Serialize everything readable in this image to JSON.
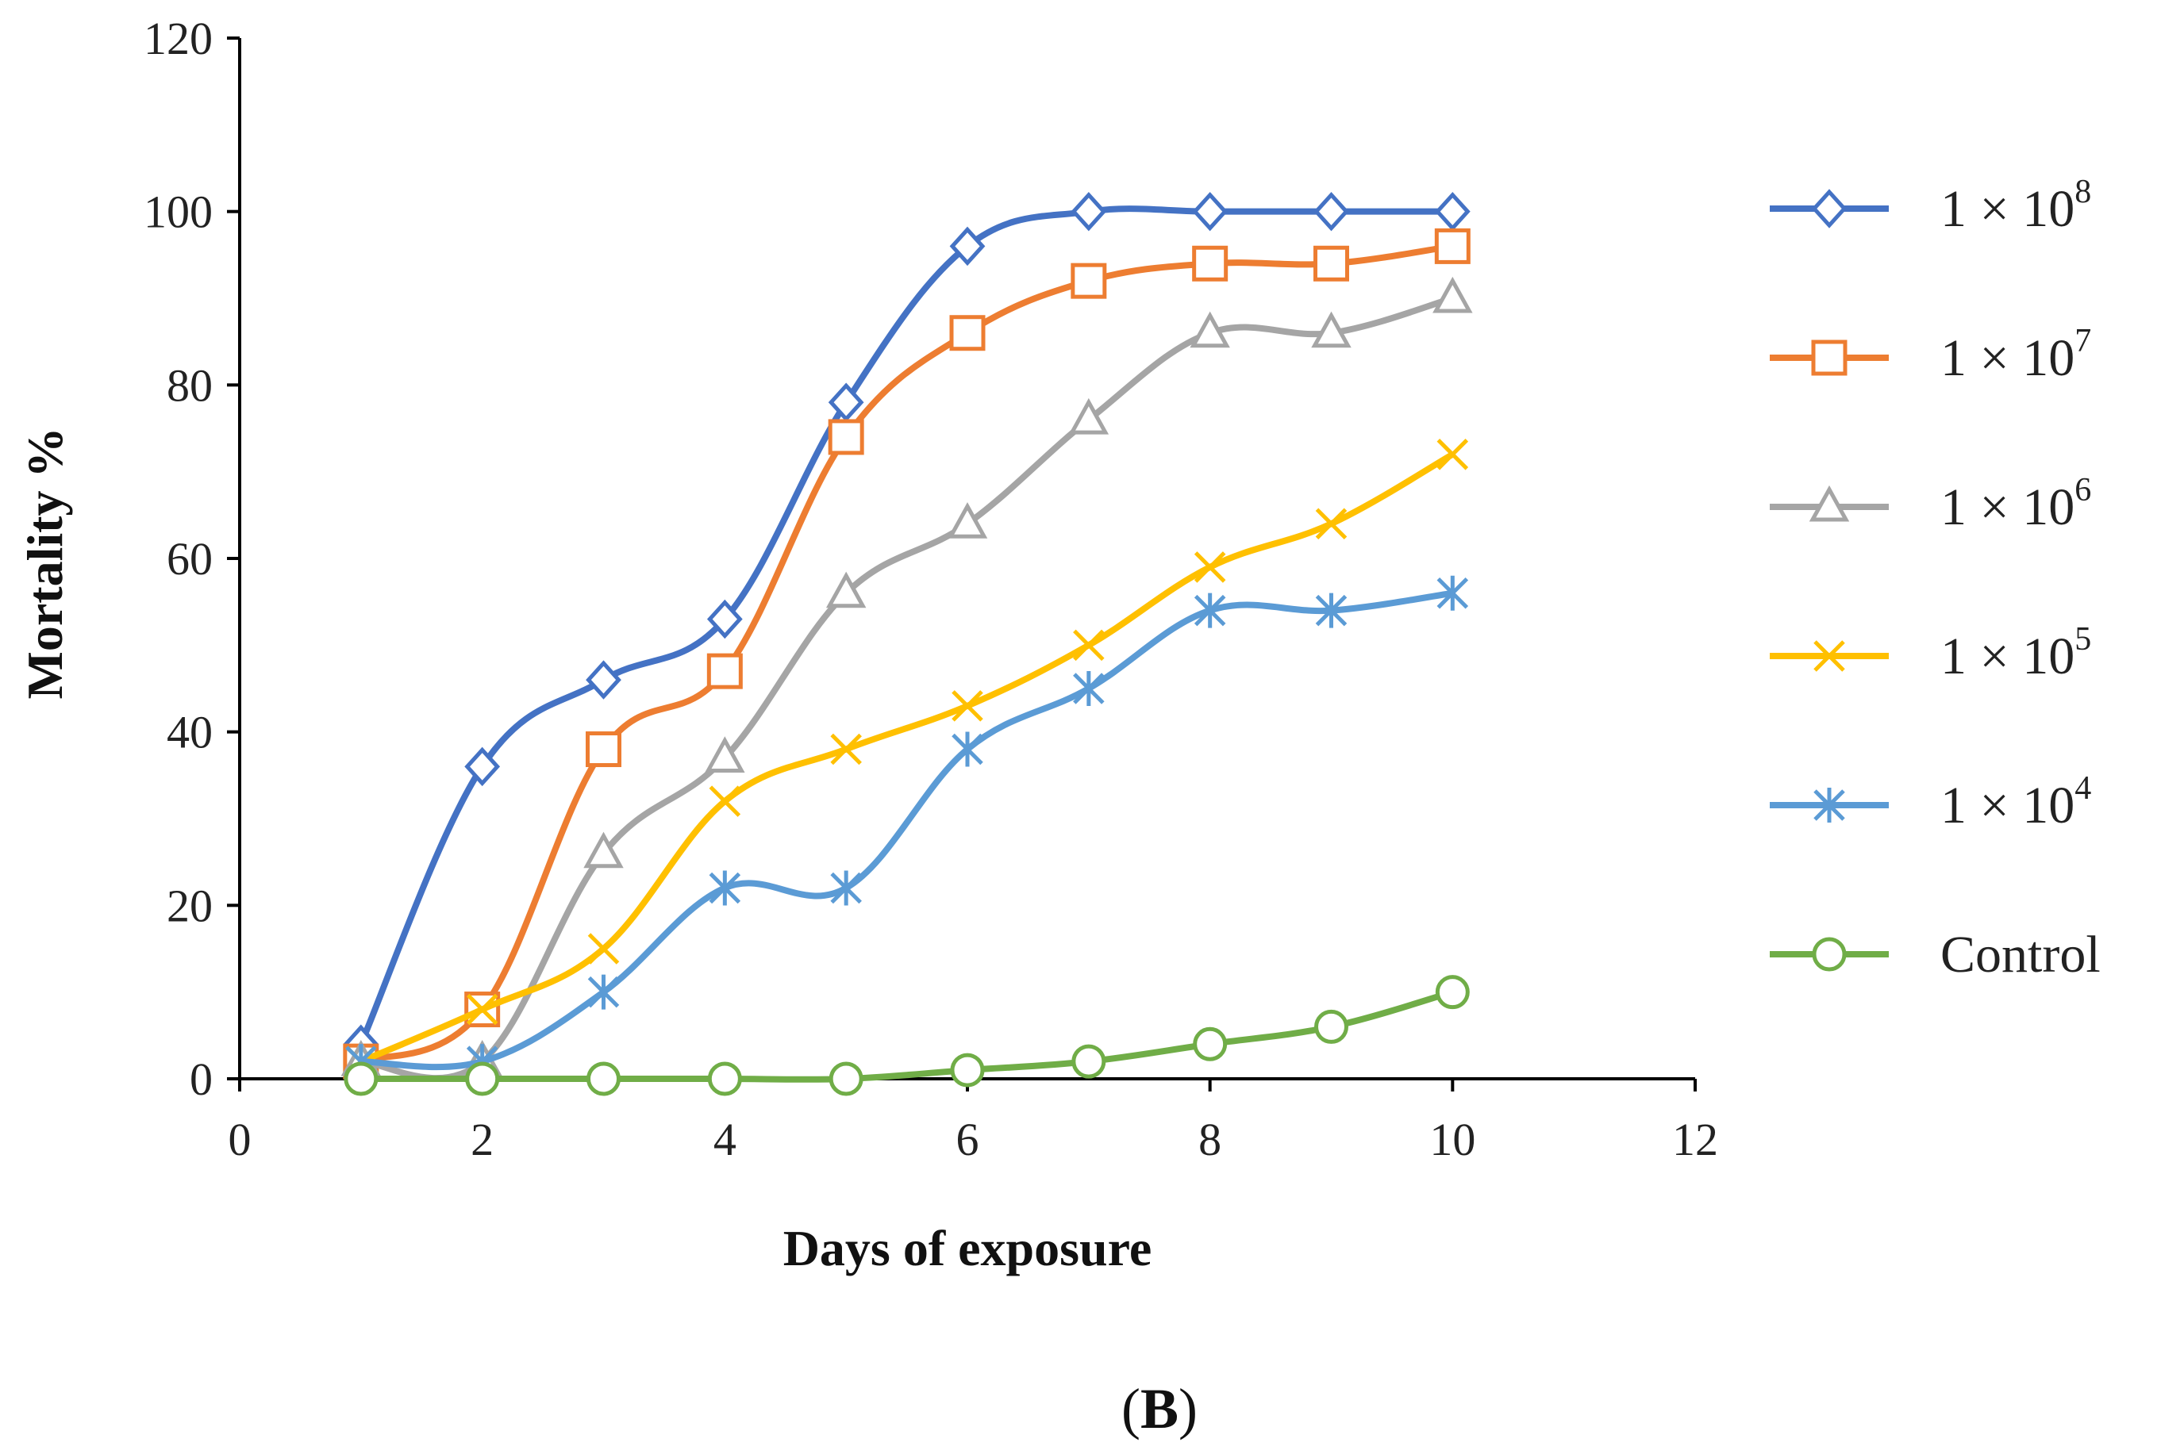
{
  "chart_data": {
    "type": "line",
    "title": "",
    "xlabel": "Days of exposure",
    "ylabel": "Mortality %",
    "xlim": [
      0,
      12
    ],
    "ylim": [
      0,
      120
    ],
    "xticks": [
      0,
      2,
      4,
      6,
      8,
      10,
      12
    ],
    "yticks": [
      0,
      20,
      40,
      60,
      80,
      100,
      120
    ],
    "grid": false,
    "legend_position": "right",
    "x": [
      1,
      2,
      3,
      4,
      5,
      6,
      7,
      8,
      9,
      10
    ],
    "series": [
      {
        "name": "1 × 10^8",
        "base": "1 × 10",
        "exp": "8",
        "marker": "diamond",
        "color": "#4472C4",
        "values": [
          4,
          36,
          46,
          53,
          78,
          96,
          100,
          100,
          100,
          100
        ]
      },
      {
        "name": "1 × 10^7",
        "base": "1 × 10",
        "exp": "7",
        "marker": "square",
        "color": "#ED7D31",
        "values": [
          2,
          8,
          38,
          47,
          74,
          86,
          92,
          94,
          94,
          96
        ]
      },
      {
        "name": "1 × 10^6",
        "base": "1 × 10",
        "exp": "6",
        "marker": "triangle",
        "color": "#A5A5A5",
        "values": [
          2,
          2,
          26,
          37,
          56,
          64,
          76,
          86,
          86,
          90
        ]
      },
      {
        "name": "1 × 10^5",
        "base": "1 × 10",
        "exp": "5",
        "marker": "x",
        "color": "#FFC000",
        "values": [
          2,
          8,
          15,
          32,
          38,
          43,
          50,
          59,
          64,
          72
        ]
      },
      {
        "name": "1 × 10^4",
        "base": "1 × 10",
        "exp": "4",
        "marker": "star",
        "color": "#5B9BD5",
        "values": [
          2,
          2,
          10,
          22,
          22,
          38,
          45,
          54,
          54,
          56
        ]
      },
      {
        "name": "Control",
        "base": "Control",
        "exp": "",
        "marker": "circle",
        "color": "#70AD47",
        "values": [
          0,
          0,
          0,
          0,
          0,
          1,
          2,
          4,
          6,
          10
        ]
      }
    ]
  },
  "panel_label": {
    "open": "(",
    "letter": "B",
    "close": ")"
  }
}
